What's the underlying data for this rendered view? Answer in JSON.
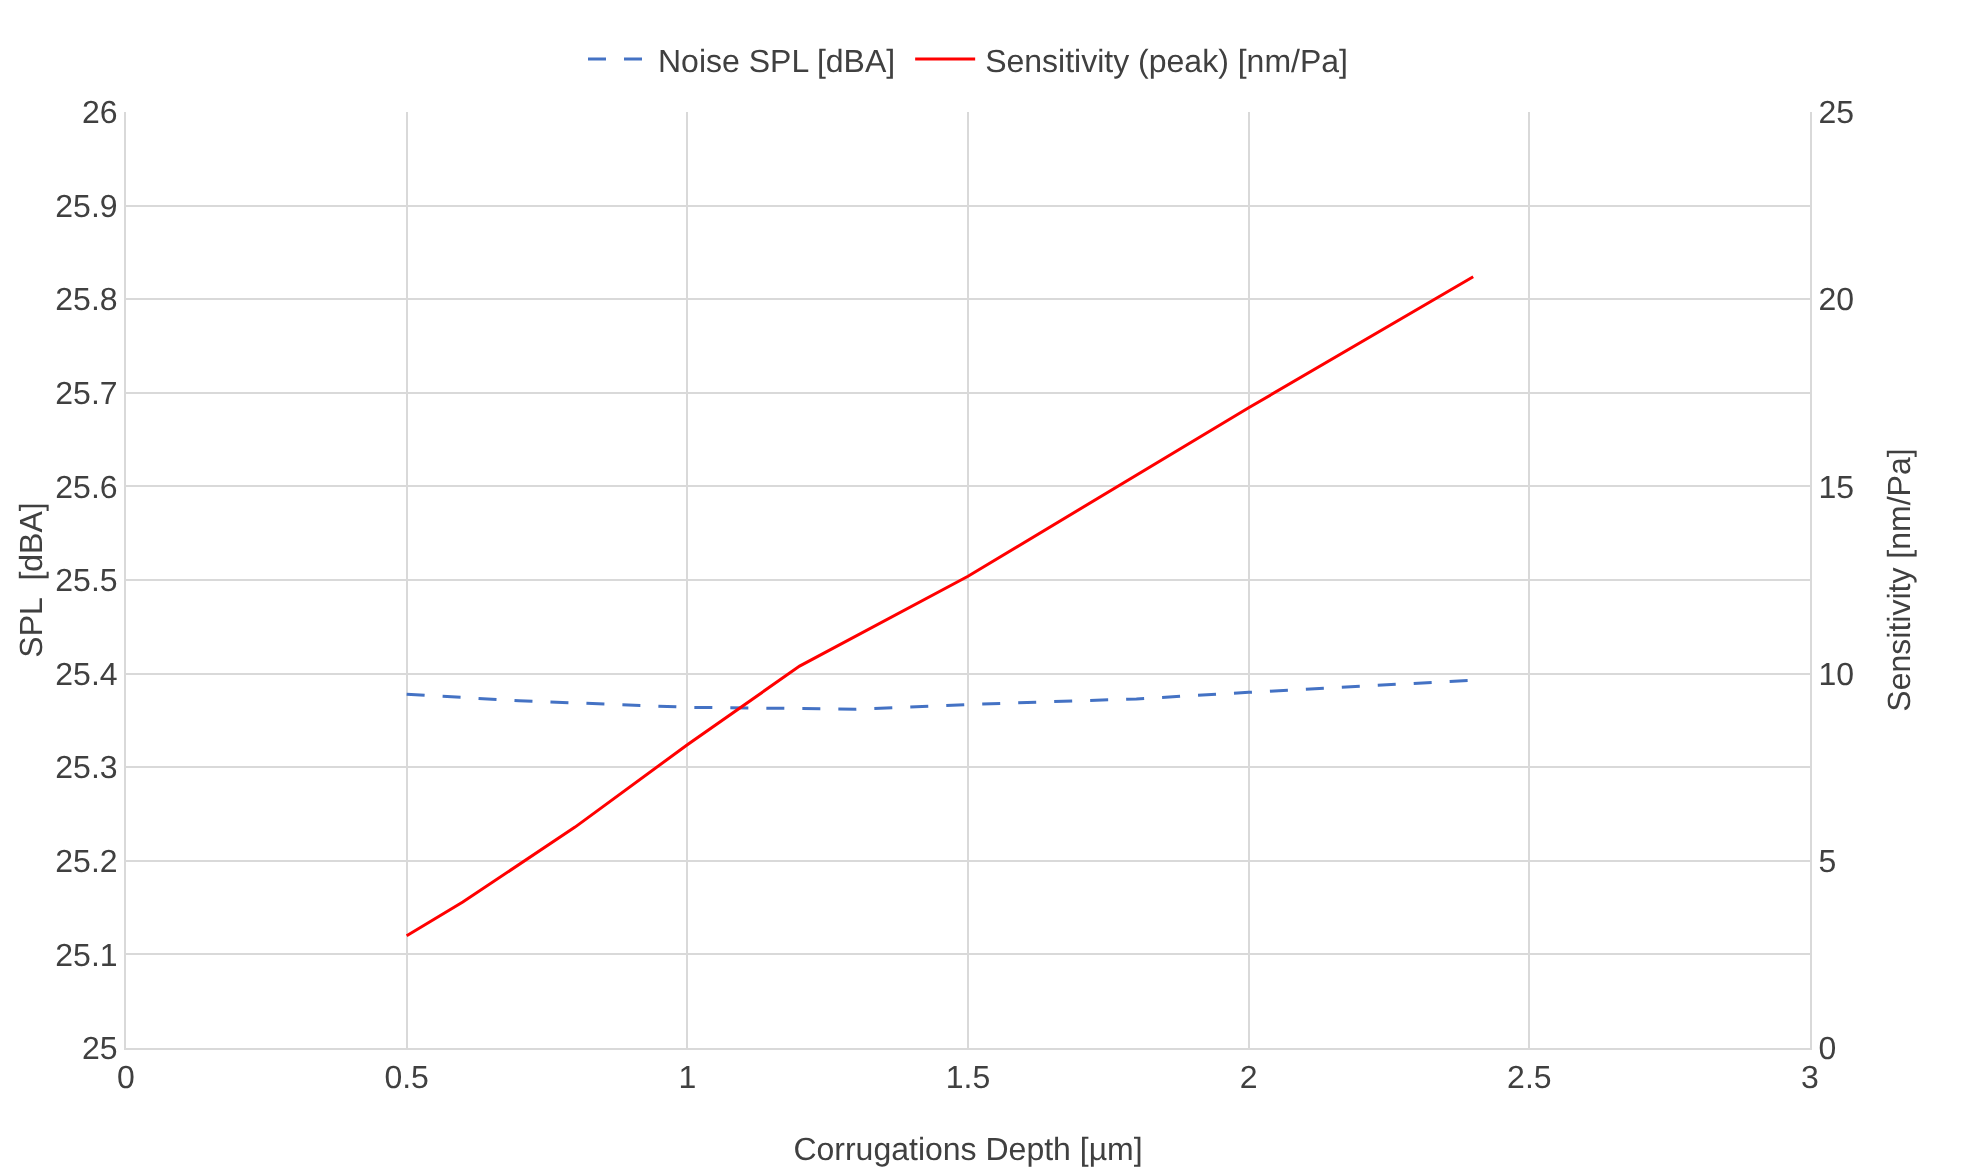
{
  "chart_data": {
    "type": "line",
    "xlabel": "Corrugations Depth [µm]",
    "ylabel": "SPL  [dBA]",
    "y2label": "Sensitivity [nm/Pa]",
    "xlim": [
      0,
      3
    ],
    "xticks": [
      0,
      0.5,
      1,
      1.5,
      2,
      2.5,
      3
    ],
    "ylim": [
      25,
      26
    ],
    "yticks": [
      25,
      25.1,
      25.2,
      25.3,
      25.4,
      25.5,
      25.6,
      25.7,
      25.8,
      25.9,
      26
    ],
    "y2lim": [
      0,
      25
    ],
    "y2ticks": [
      0,
      5,
      10,
      15,
      20,
      25
    ],
    "grid": true,
    "legend": "top",
    "marker": "none",
    "series": [
      {
        "name": "Noise SPL [dBA]",
        "color": "#4472c4",
        "line_style": "dashed",
        "x": [
          0.5,
          0.7,
          1.0,
          1.3,
          1.5,
          1.8,
          2.0,
          2.4
        ],
        "values": [
          25.378,
          25.371,
          25.364,
          25.362,
          25.367,
          25.373,
          25.38,
          25.393
        ]
      },
      {
        "name": "Sensitivity (peak) [nm/Pa]",
        "color": "#ff0000",
        "line_style": "solid",
        "axis": "y2",
        "x": [
          0.5,
          0.6,
          0.8,
          1.0,
          1.2,
          1.5,
          2.0,
          2.4
        ],
        "values": [
          3.0,
          3.9,
          5.9,
          8.1,
          10.2,
          12.6,
          17.1,
          20.6
        ]
      }
    ]
  }
}
